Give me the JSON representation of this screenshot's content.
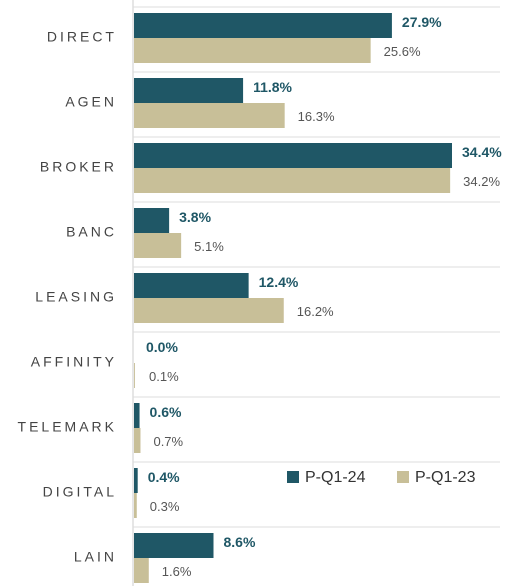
{
  "chart_data": {
    "type": "bar",
    "orientation": "horizontal",
    "categories": [
      "DIRECT",
      "AGEN",
      "BROKER",
      "BANC",
      "LEASING",
      "AFFINITY",
      "TELEMARK",
      "DIGITAL",
      "LAIN"
    ],
    "series": [
      {
        "name": "P-Q1-24",
        "color": "#1f5766",
        "values": [
          27.9,
          11.8,
          34.4,
          3.8,
          12.4,
          0.0,
          0.6,
          0.4,
          8.6
        ],
        "value_labels": [
          "27.9%",
          "11.8%",
          "34.4%",
          "3.8%",
          "12.4%",
          "0.0%",
          "0.6%",
          "0.4%",
          "8.6%"
        ]
      },
      {
        "name": "P-Q1-23",
        "color": "#c8bf98",
        "values": [
          25.6,
          16.3,
          34.2,
          5.1,
          16.2,
          0.1,
          0.7,
          0.3,
          1.6
        ],
        "value_labels": [
          "25.6%",
          "16.3%",
          "34.2%",
          "5.1%",
          "16.2%",
          "0.1%",
          "0.7%",
          "0.3%",
          "1.6%"
        ]
      }
    ]
  }
}
